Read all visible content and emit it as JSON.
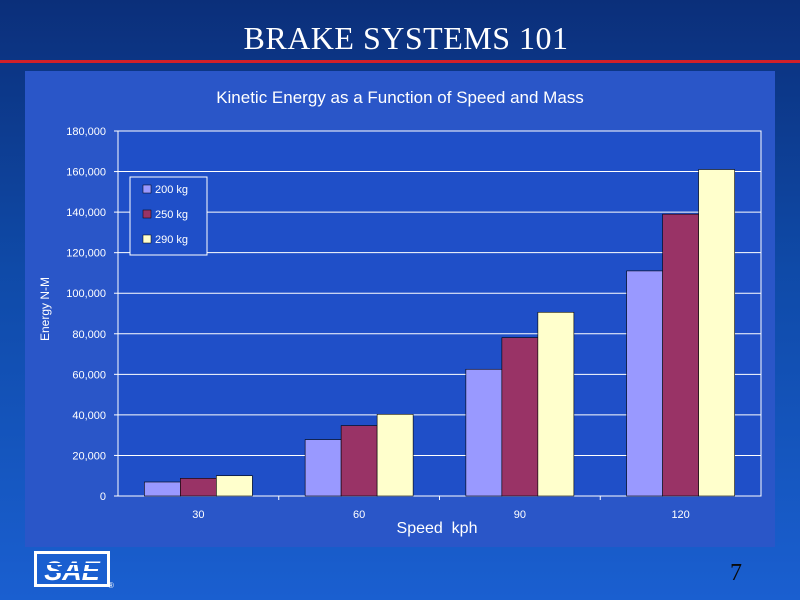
{
  "slide": {
    "title": "BRAKE SYSTEMS 101",
    "page_number": "7"
  },
  "logo": {
    "text": "SAE",
    "mark": "®"
  },
  "colors": {
    "background_top": "#0b2f7a",
    "background_bottom": "#1a5fd0",
    "title_rule": "#d0202a",
    "chart_panel": "#2a56c8",
    "plot_area": "#1f4fc8",
    "gridline": "#ffffff",
    "text": "#ffffff"
  },
  "chart_data": {
    "type": "bar",
    "title": "Kinetic Energy as a Function of Speed and Mass",
    "xlabel": "Speed  kph",
    "ylabel": "Energy N-M",
    "categories": [
      "30",
      "60",
      "90",
      "120"
    ],
    "series": [
      {
        "name": "200 kg",
        "color": "#9999ff",
        "values": [
          6900,
          27800,
          62500,
          111000
        ]
      },
      {
        "name": "250 kg",
        "color": "#993366",
        "values": [
          8700,
          34700,
          78100,
          139000
        ]
      },
      {
        "name": "290 kg",
        "color": "#ffffcc",
        "values": [
          10000,
          40300,
          90600,
          161000
        ]
      }
    ],
    "ylim": [
      0,
      180000
    ],
    "yticks": [
      "0",
      "20,000",
      "40,000",
      "60,000",
      "80,000",
      "100,000",
      "120,000",
      "140,000",
      "160,000",
      "180,000"
    ],
    "ytick_values": [
      0,
      20000,
      40000,
      60000,
      80000,
      100000,
      120000,
      140000,
      160000,
      180000
    ],
    "grid": true,
    "legend_position": "top-left"
  }
}
